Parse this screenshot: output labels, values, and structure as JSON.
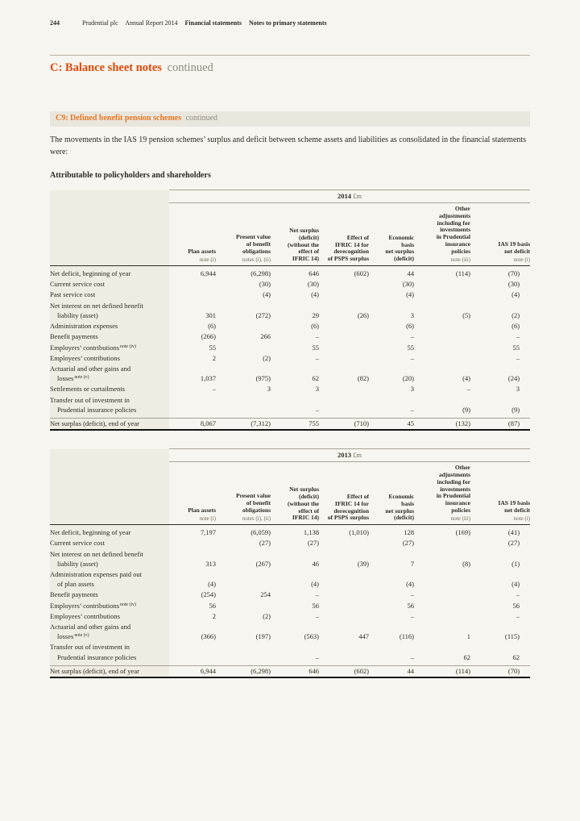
{
  "colors": {
    "title_accent": "#e04a0c",
    "note_accent": "#e87722",
    "page_background": "#f7f5ef",
    "stub_background": "#efece3"
  },
  "header": {
    "page_number": "244",
    "brand": "Prudential plc",
    "report": "Annual Report 2014",
    "section": "Financial statements",
    "subsection": "Notes to primary statements"
  },
  "title": {
    "main": "C: Balance sheet notes",
    "continued": "continued"
  },
  "note_header": {
    "main": "C9: Defined benefit pension schemes",
    "continued": "continued"
  },
  "intro": "The movements in the IAS 19 pension schemes’ surplus and deficit between scheme assets and liabilities as consolidated in the financial statements were:",
  "subtitle": "Attributable to policyholders and shareholders",
  "table_columns": [
    {
      "title_lines": [
        "Plan assets"
      ],
      "note": "note (i)"
    },
    {
      "title_lines": [
        "Present value",
        "of benefit",
        "obligations"
      ],
      "note": "notes (i), (ii)"
    },
    {
      "title_lines": [
        "Net surplus",
        "(deficit)",
        "(without the",
        "effect of",
        "IFRIC 14)"
      ],
      "note": ""
    },
    {
      "title_lines": [
        "Effect of",
        "IFRIC 14 for",
        "derecognition",
        "of PSPS surplus"
      ],
      "note": ""
    },
    {
      "title_lines": [
        "Economic",
        "basis",
        "net surplus",
        "(deficit)"
      ],
      "note": ""
    },
    {
      "title_lines": [
        "Other",
        "adjustments",
        "including for",
        "investments",
        "in Prudential",
        "insurance",
        "policies"
      ],
      "note": "note (iii)"
    },
    {
      "title_lines": [
        "IAS 19 basis",
        "net deficit"
      ],
      "note": "note (i)"
    }
  ],
  "tables": [
    {
      "year": "2014",
      "unit": "£m",
      "rows": [
        {
          "label_lines": [
            "Net deficit, beginning of year"
          ],
          "sup": "",
          "values": [
            "6,944",
            "(6,298)",
            "646",
            "(602)",
            "44",
            "(114)",
            "(70)"
          ]
        },
        {
          "label_lines": [
            "Current service cost"
          ],
          "sup": "",
          "values": [
            "",
            "(30)",
            "(30)",
            "",
            "(30)",
            "",
            "(30)"
          ]
        },
        {
          "label_lines": [
            "Past service cost"
          ],
          "sup": "",
          "values": [
            "",
            "(4)",
            "(4)",
            "",
            "(4)",
            "",
            "(4)"
          ]
        },
        {
          "label_lines": [
            "Net interest on net defined benefit",
            "liability (asset)"
          ],
          "sup": "",
          "values": [
            "301",
            "(272)",
            "29",
            "(26)",
            "3",
            "(5)",
            "(2)"
          ]
        },
        {
          "label_lines": [
            "Administration expenses"
          ],
          "sup": "",
          "values": [
            "(6)",
            "",
            "(6)",
            "",
            "(6)",
            "",
            "(6)"
          ]
        },
        {
          "label_lines": [
            "Benefit payments"
          ],
          "sup": "",
          "values": [
            "(266)",
            "266",
            "–",
            "",
            "–",
            "",
            "–"
          ]
        },
        {
          "label_lines": [
            "Employers’ contributions"
          ],
          "sup": "note (iv)",
          "values": [
            "55",
            "",
            "55",
            "",
            "55",
            "",
            "55"
          ]
        },
        {
          "label_lines": [
            "Employees’ contributions"
          ],
          "sup": "",
          "values": [
            "2",
            "(2)",
            "–",
            "",
            "–",
            "",
            "–"
          ]
        },
        {
          "label_lines": [
            "Actuarial and other gains and",
            "losses"
          ],
          "sup": "note (v)",
          "values": [
            "1,037",
            "(975)",
            "62",
            "(82)",
            "(20)",
            "(4)",
            "(24)"
          ]
        },
        {
          "label_lines": [
            "Settlements or curtailments"
          ],
          "sup": "",
          "values": [
            "–",
            "3",
            "3",
            "",
            "3",
            "–",
            "3"
          ]
        },
        {
          "label_lines": [
            "Transfer out of investment in",
            "Prudential insurance policies"
          ],
          "sup": "",
          "values": [
            "",
            "",
            "–",
            "",
            "–",
            "(9)",
            "(9)"
          ]
        }
      ],
      "total": {
        "label_lines": [
          "Net surplus (deficit), end of year"
        ],
        "sup": "",
        "values": [
          "8,067",
          "(7,312)",
          "755",
          "(710)",
          "45",
          "(132)",
          "(87)"
        ]
      }
    },
    {
      "year": "2013",
      "unit": "£m",
      "rows": [
        {
          "label_lines": [
            "Net deficit, beginning of year"
          ],
          "sup": "",
          "values": [
            "7,197",
            "(6,059)",
            "1,138",
            "(1,010)",
            "128",
            "(169)",
            "(41)"
          ]
        },
        {
          "label_lines": [
            "Current service cost"
          ],
          "sup": "",
          "values": [
            "",
            "(27)",
            "(27)",
            "",
            "(27)",
            "",
            "(27)"
          ]
        },
        {
          "label_lines": [
            "Net interest on net defined benefit",
            "liability (asset)"
          ],
          "sup": "",
          "values": [
            "313",
            "(267)",
            "46",
            "(39)",
            "7",
            "(8)",
            "(1)"
          ]
        },
        {
          "label_lines": [
            "Administration expenses paid out",
            "of plan assets"
          ],
          "sup": "",
          "values": [
            "(4)",
            "",
            "(4)",
            "",
            "(4)",
            "",
            "(4)"
          ]
        },
        {
          "label_lines": [
            "Benefit payments"
          ],
          "sup": "",
          "values": [
            "(254)",
            "254",
            "–",
            "",
            "–",
            "",
            "–"
          ]
        },
        {
          "label_lines": [
            "Employers’ contributions"
          ],
          "sup": "note (iv)",
          "values": [
            "56",
            "",
            "56",
            "",
            "56",
            "",
            "56"
          ]
        },
        {
          "label_lines": [
            "Employees’ contributions"
          ],
          "sup": "",
          "values": [
            "2",
            "(2)",
            "–",
            "",
            "–",
            "",
            "–"
          ]
        },
        {
          "label_lines": [
            "Actuarial and other gains and",
            "losses"
          ],
          "sup": "note (v)",
          "values": [
            "(366)",
            "(197)",
            "(563)",
            "447",
            "(116)",
            "1",
            "(115)"
          ]
        },
        {
          "label_lines": [
            "Transfer out of investment in",
            "Prudential insurance policies"
          ],
          "sup": "",
          "values": [
            "",
            "",
            "–",
            "",
            "–",
            "62",
            "62"
          ]
        }
      ],
      "total": {
        "label_lines": [
          "Net surplus (deficit), end of year"
        ],
        "sup": "",
        "values": [
          "6,944",
          "(6,298)",
          "646",
          "(602)",
          "44",
          "(114)",
          "(70)"
        ]
      }
    }
  ]
}
